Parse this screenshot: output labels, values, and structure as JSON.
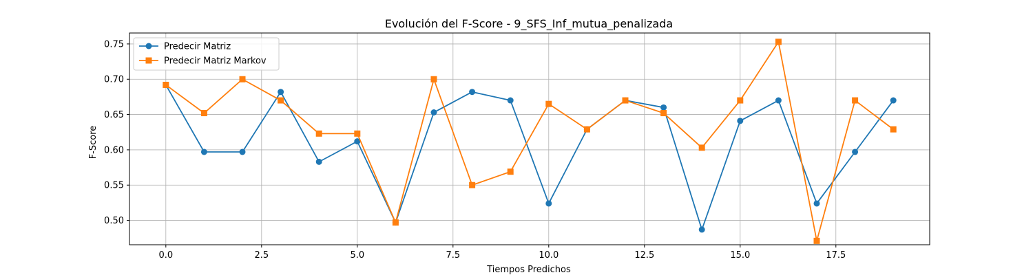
{
  "chart_data": {
    "type": "line",
    "title": "Evolución del F-Score - 9_SFS_Inf_mutua_penalizada",
    "xlabel": "Tiempos Predichos",
    "ylabel": "F-Score",
    "xlim": [
      -0.95,
      19.95
    ],
    "ylim": [
      0.4655,
      0.7655
    ],
    "xticks": [
      0.0,
      2.5,
      5.0,
      7.5,
      10.0,
      12.5,
      15.0,
      17.5
    ],
    "xtick_labels": [
      "0.0",
      "2.5",
      "5.0",
      "7.5",
      "10.0",
      "12.5",
      "15.0",
      "17.5"
    ],
    "yticks": [
      0.5,
      0.55,
      0.6,
      0.65,
      0.7,
      0.75
    ],
    "ytick_labels": [
      "0.50",
      "0.55",
      "0.60",
      "0.65",
      "0.70",
      "0.75"
    ],
    "grid": true,
    "legend_position": "top-left",
    "x": [
      0,
      1,
      2,
      3,
      4,
      5,
      6,
      7,
      8,
      9,
      10,
      11,
      12,
      13,
      14,
      15,
      16,
      17,
      18,
      19
    ],
    "series": [
      {
        "name": "Predecir Matriz",
        "color": "#1f77b4",
        "marker": "circle",
        "values": [
          0.692,
          0.597,
          0.597,
          0.682,
          0.583,
          0.612,
          0.497,
          0.653,
          0.682,
          0.67,
          0.524,
          0.629,
          0.67,
          0.66,
          0.487,
          0.641,
          0.67,
          0.524,
          0.597,
          0.67
        ]
      },
      {
        "name": "Predecir Matriz Markov",
        "color": "#ff7f0e",
        "marker": "square",
        "values": [
          0.692,
          0.652,
          0.7,
          0.67,
          0.623,
          0.623,
          0.497,
          0.7,
          0.55,
          0.569,
          0.665,
          0.629,
          0.67,
          0.652,
          0.603,
          0.67,
          0.753,
          0.471,
          0.67,
          0.629
        ]
      }
    ]
  }
}
